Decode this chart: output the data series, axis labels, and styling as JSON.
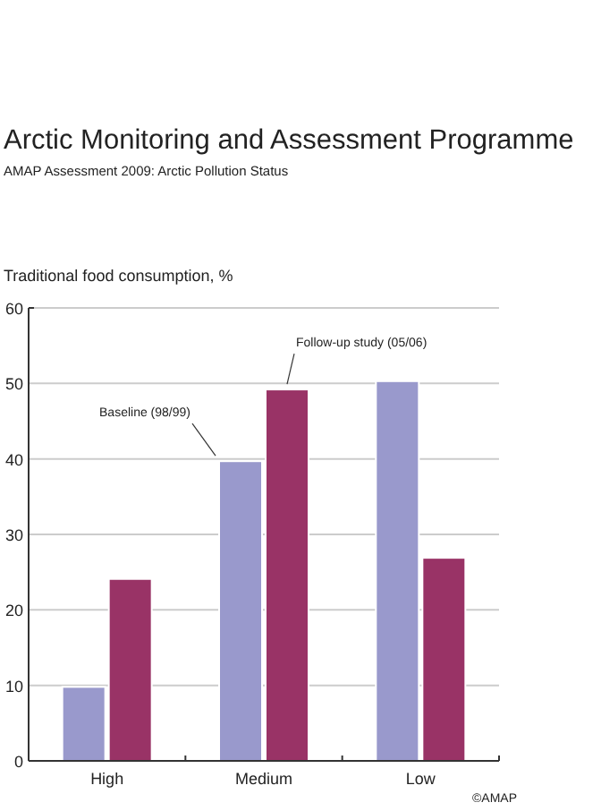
{
  "chart_data": {
    "type": "bar",
    "title": "Arctic Monitoring and Assessment Programme",
    "subtitle": "AMAP Assessment 2009: Arctic Pollution Status",
    "ylabel": "Traditional food consumption, %",
    "categories": [
      "High",
      "Medium",
      "Low"
    ],
    "series": [
      {
        "name": "Baseline (98/99)",
        "color": "#9999cc",
        "values": [
          9.8,
          39.7,
          50.3
        ]
      },
      {
        "name": "Follow-up study (05/06)",
        "color": "#993366",
        "values": [
          24.1,
          49.2,
          26.9
        ]
      }
    ],
    "ylim": [
      0,
      60
    ],
    "yticks": [
      0,
      10,
      20,
      30,
      40,
      50,
      60
    ],
    "grid": "y",
    "legend": false,
    "annotations": [
      "©AMAP"
    ]
  }
}
